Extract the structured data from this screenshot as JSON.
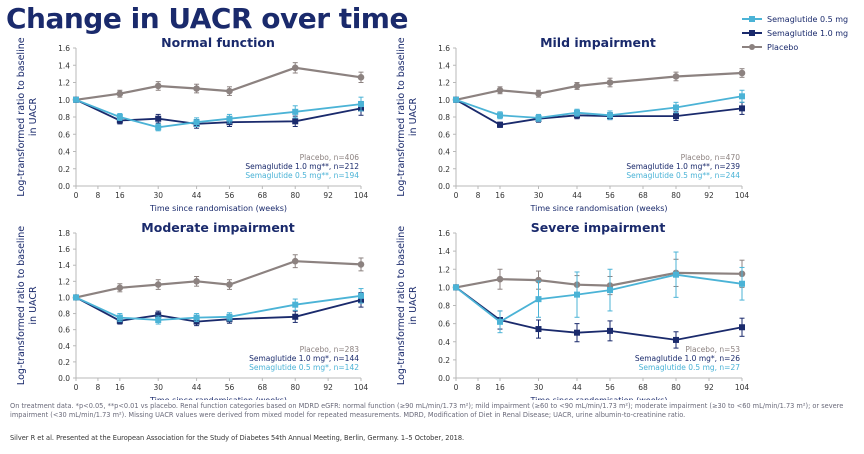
{
  "title": "Change in UACR over time",
  "colors": {
    "s05": "#4bb3d6",
    "s10": "#1a2a6c",
    "placebo": "#8c8280",
    "text_dark": "#1a2a6c"
  },
  "legend": [
    {
      "label": "Semaglutide 0.5 mg",
      "series": "s05",
      "marker": "square"
    },
    {
      "label": "Semaglutide 1.0 mg",
      "series": "s10",
      "marker": "square"
    },
    {
      "label": "Placebo",
      "series": "placebo",
      "marker": "circle"
    }
  ],
  "chart_data": [
    {
      "type": "line",
      "title": "Normal function",
      "ylabel": "Log-transformed ratio to baseline in UACR",
      "xlabel": "Time since randomisation (weeks)",
      "x_ticks": [
        0,
        8,
        16,
        30,
        44,
        56,
        68,
        80,
        92,
        104
      ],
      "y_ticks": [
        "0.0",
        "0.2",
        "0.4",
        "0.6",
        "0.8",
        "1.0",
        "1.2",
        "1.4",
        "1.6"
      ],
      "ylim": [
        0,
        1.6
      ],
      "xlim": [
        0,
        104
      ],
      "grid": false,
      "n_labels": [
        "Placebo, n=406",
        "Semaglutide 1.0 mg**, n=212",
        "Semaglutide 0.5 mg**, n=194"
      ],
      "series": [
        {
          "key": "placebo",
          "x": [
            0,
            16,
            30,
            44,
            56,
            80,
            104
          ],
          "y": [
            1.0,
            1.07,
            1.16,
            1.13,
            1.1,
            1.37,
            1.26
          ],
          "err": [
            0,
            0.04,
            0.05,
            0.05,
            0.05,
            0.06,
            0.06
          ]
        },
        {
          "key": "s10",
          "x": [
            0,
            16,
            30,
            44,
            56,
            80,
            104
          ],
          "y": [
            1.0,
            0.76,
            0.78,
            0.72,
            0.74,
            0.75,
            0.9
          ],
          "err": [
            0,
            0.04,
            0.05,
            0.05,
            0.05,
            0.06,
            0.08
          ]
        },
        {
          "key": "s05",
          "x": [
            0,
            16,
            30,
            44,
            56,
            80,
            104
          ],
          "y": [
            1.0,
            0.8,
            0.68,
            0.74,
            0.78,
            0.86,
            0.95
          ],
          "err": [
            0,
            0.04,
            0.04,
            0.05,
            0.05,
            0.07,
            0.08
          ]
        }
      ]
    },
    {
      "type": "line",
      "title": "Mild impairment",
      "ylabel": "Log-transformed ratio to baseline in UACR",
      "xlabel": "Time since randomisation (weeks)",
      "x_ticks": [
        0,
        8,
        16,
        30,
        44,
        56,
        68,
        80,
        92,
        104
      ],
      "y_ticks": [
        "0.0",
        "0.2",
        "0.4",
        "0.6",
        "0.8",
        "1.0",
        "1.2",
        "1.4",
        "1.6"
      ],
      "ylim": [
        0,
        1.6
      ],
      "xlim": [
        0,
        104
      ],
      "grid": false,
      "n_labels": [
        "Placebo, n=470",
        "Semaglutide 1.0 mg**, n=239",
        "Semaglutide 0.5 mg**, n=244"
      ],
      "series": [
        {
          "key": "placebo",
          "x": [
            0,
            16,
            30,
            44,
            56,
            80,
            104
          ],
          "y": [
            1.0,
            1.11,
            1.07,
            1.16,
            1.2,
            1.27,
            1.31
          ],
          "err": [
            0,
            0.04,
            0.04,
            0.04,
            0.05,
            0.05,
            0.05
          ]
        },
        {
          "key": "s10",
          "x": [
            0,
            16,
            30,
            44,
            56,
            80,
            104
          ],
          "y": [
            1.0,
            0.71,
            0.78,
            0.82,
            0.81,
            0.81,
            0.9
          ],
          "err": [
            0,
            0.03,
            0.04,
            0.04,
            0.04,
            0.05,
            0.07
          ]
        },
        {
          "key": "s05",
          "x": [
            0,
            16,
            30,
            44,
            56,
            80,
            104
          ],
          "y": [
            1.0,
            0.82,
            0.79,
            0.85,
            0.82,
            0.91,
            1.04
          ],
          "err": [
            0,
            0.04,
            0.04,
            0.04,
            0.05,
            0.06,
            0.07
          ]
        }
      ]
    },
    {
      "type": "line",
      "title": "Moderate impairment",
      "ylabel": "Log-transformed ratio to baseline in UACR",
      "xlabel": "Time since randomisation (weeks)",
      "x_ticks": [
        0,
        8,
        16,
        30,
        44,
        56,
        68,
        80,
        92,
        104
      ],
      "y_ticks": [
        "0.0",
        "0.2",
        "0.4",
        "0.6",
        "0.8",
        "1.0",
        "1.2",
        "1.4",
        "1.6",
        "1.8"
      ],
      "ylim": [
        0,
        1.8
      ],
      "xlim": [
        0,
        104
      ],
      "grid": false,
      "n_labels": [
        "Placebo, n=283",
        "Semaglutide 1.0 mg*, n=144",
        "Semaglutide 0.5 mg*, n=142"
      ],
      "series": [
        {
          "key": "placebo",
          "x": [
            0,
            16,
            30,
            44,
            56,
            80,
            104
          ],
          "y": [
            1.0,
            1.12,
            1.16,
            1.2,
            1.16,
            1.45,
            1.41
          ],
          "err": [
            0,
            0.05,
            0.06,
            0.06,
            0.06,
            0.08,
            0.08
          ]
        },
        {
          "key": "s10",
          "x": [
            0,
            16,
            30,
            44,
            56,
            80,
            104
          ],
          "y": [
            1.0,
            0.71,
            0.78,
            0.7,
            0.73,
            0.76,
            0.97
          ],
          "err": [
            0,
            0.04,
            0.05,
            0.05,
            0.05,
            0.07,
            0.09
          ]
        },
        {
          "key": "s05",
          "x": [
            0,
            16,
            30,
            44,
            56,
            80,
            104
          ],
          "y": [
            1.0,
            0.75,
            0.72,
            0.75,
            0.76,
            0.91,
            1.02
          ],
          "err": [
            0,
            0.05,
            0.05,
            0.05,
            0.05,
            0.07,
            0.09
          ]
        }
      ]
    },
    {
      "type": "line",
      "title": "Severe impairment",
      "ylabel": "Log-transformed ratio to baseline in UACR",
      "xlabel": "Time since randomisation (weeks)",
      "x_ticks": [
        0,
        8,
        16,
        30,
        44,
        56,
        68,
        80,
        92,
        104
      ],
      "y_ticks": [
        "0.0",
        "0.2",
        "0.4",
        "0.6",
        "0.8",
        "1.0",
        "1.2",
        "1.4",
        "1.6"
      ],
      "ylim": [
        0,
        1.6
      ],
      "xlim": [
        0,
        104
      ],
      "grid": false,
      "n_labels": [
        "Placebo, n=53",
        "Semaglutide 1.0 mg*, n=26",
        "Semaglutide 0.5 mg, n=27"
      ],
      "series": [
        {
          "key": "placebo",
          "x": [
            0,
            16,
            30,
            44,
            56,
            80,
            104
          ],
          "y": [
            1.0,
            1.09,
            1.08,
            1.03,
            1.02,
            1.16,
            1.15
          ],
          "err": [
            0,
            0.11,
            0.1,
            0.1,
            0.1,
            0.15,
            0.15
          ]
        },
        {
          "key": "s10",
          "x": [
            0,
            16,
            30,
            44,
            56,
            80,
            104
          ],
          "y": [
            1.0,
            0.64,
            0.54,
            0.5,
            0.52,
            0.42,
            0.56
          ],
          "err": [
            0,
            0.1,
            0.1,
            0.1,
            0.11,
            0.09,
            0.1
          ]
        },
        {
          "key": "s05",
          "x": [
            0,
            16,
            30,
            44,
            56,
            80,
            104
          ],
          "y": [
            1.0,
            0.62,
            0.87,
            0.92,
            0.97,
            1.14,
            1.04
          ],
          "err": [
            0,
            0.12,
            0.2,
            0.25,
            0.23,
            0.25,
            0.18
          ]
        }
      ]
    }
  ],
  "footnote": "On treatment data. *p<0.05, **p<0.01 vs placebo. Renal function categories based on MDRD eGFR: normal function (≥90 mL/min/1.73 m²); mild impairment (≥60 to <90 mL/min/1.73 m²); moderate impairment (≥30 to <60 mL/min/1.73 m²); or severe impairment (<30 mL/min/1.73 m²). Missing UACR values were derived from mixed model for repeated measurements. MDRD, Modification of Diet in Renal Disease; UACR, urine albumin-to-creatinine ratio.",
  "citation": "Silver R et al. Presented at the European Association for the Study of Diabetes 54th Annual Meeting, Berlin, Germany. 1–5 October, 2018."
}
